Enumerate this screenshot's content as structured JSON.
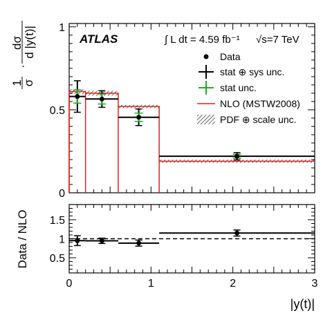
{
  "chart_data": [
    {
      "type": "line",
      "panel": "main",
      "experiment": "ATLAS",
      "lumi_text": "∫ L dt = 4.59 fb⁻¹",
      "energy_text": "√s=7 TeV",
      "ylabel": "1/σ · dσ/d|y(t)|",
      "ylabel_parts": {
        "frac1_num": "1",
        "frac1_den": "σ",
        "dot": "·",
        "frac2_num": "dσ",
        "frac2_den": "d |y(t)|"
      },
      "xlim": [
        0,
        3
      ],
      "ylim": [
        0,
        1.02
      ],
      "y_ticks": [
        "0",
        "0.5",
        "1"
      ],
      "y_tick_values": [
        0,
        0.5,
        1
      ],
      "bin_edges": [
        0,
        0.2,
        0.6,
        1.1,
        3.0
      ],
      "legend_position": "top-right",
      "legend": [
        {
          "label": "Data",
          "marker": "dot"
        },
        {
          "label": "stat ⊕ sys unc.",
          "marker": "cross-black"
        },
        {
          "label": "stat unc.",
          "marker": "cross-green"
        },
        {
          "label": "NLO (MSTW2008)",
          "marker": "line-red"
        },
        {
          "label": "PDF ⊕ scale unc.",
          "marker": "hatch"
        }
      ],
      "series": [
        {
          "name": "Data",
          "x": [
            0.1,
            0.4,
            0.85,
            2.05
          ],
          "xerr": [
            0.1,
            0.2,
            0.25,
            0.95
          ],
          "y": [
            0.58,
            0.565,
            0.455,
            0.22
          ],
          "yerr_total": [
            0.095,
            0.05,
            0.05,
            0.022
          ],
          "yerr_stat": [
            0.04,
            0.03,
            0.025,
            0.012
          ]
        },
        {
          "name": "NLO (MSTW2008)",
          "values": [
            0.61,
            0.6,
            0.52,
            0.19
          ],
          "band": [
            0.015,
            0.015,
            0.01,
            0.01
          ]
        }
      ],
      "colors": {
        "data": "#000000",
        "stat": "#22aa22",
        "nlo": "#e02020",
        "band": "#000000"
      }
    },
    {
      "type": "line",
      "panel": "ratio",
      "ylabel": "Data / NLO",
      "xlabel": "|y(t)|",
      "xlim": [
        0,
        3
      ],
      "ylim": [
        0.1,
        1.9
      ],
      "x_ticks": [
        "0",
        "1",
        "2",
        "3"
      ],
      "x_tick_values": [
        0,
        1,
        2,
        3
      ],
      "y_ticks": [
        "0.5",
        "1",
        "1.5"
      ],
      "y_tick_values": [
        0.5,
        1,
        1.5
      ],
      "reference_line": 1,
      "series": [
        {
          "name": "Data / NLO",
          "x": [
            0.1,
            0.4,
            0.85,
            2.05
          ],
          "xerr": [
            0.1,
            0.2,
            0.25,
            0.95
          ],
          "y": [
            0.95,
            0.945,
            0.885,
            1.15
          ],
          "yerr": [
            0.13,
            0.07,
            0.08,
            0.08
          ]
        }
      ]
    }
  ]
}
